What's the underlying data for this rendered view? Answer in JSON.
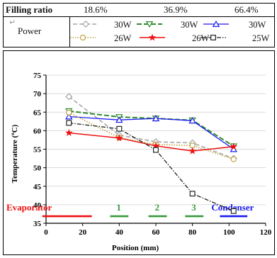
{
  "legend": {
    "header": {
      "label": "Filling ratio",
      "ratios": [
        "18.6%",
        "36.9%",
        "66.4%"
      ]
    },
    "power_label": "Power",
    "entries": [
      {
        "text": "30W",
        "style": "grey dashed, diamond"
      },
      {
        "text": "30W",
        "style": "green dashed, triangle-down"
      },
      {
        "text": "30W",
        "style": "blue solid, triangle-up"
      },
      {
        "text": "26W",
        "style": "olive dotted, circle"
      },
      {
        "text": "26W",
        "style": "red solid, star"
      },
      {
        "text": "25W",
        "style": "black dash-dot, square"
      }
    ]
  },
  "colors": {
    "grey": "#a6a6a6",
    "green": "#2e8b2e",
    "blue": "#1a1aee",
    "olive": "#c0a040",
    "red": "#ee1111",
    "black": "#222222",
    "bar_green": "#3a9a3a",
    "bar_red": "#ee1111",
    "bar_blue": "#1a1aee"
  },
  "chart_data": {
    "type": "line",
    "xlabel": "Position (mm)",
    "ylabel": "Temperature (°C)",
    "xlim": [
      0,
      120
    ],
    "ylim": [
      35,
      75
    ],
    "xticks": [
      0,
      20,
      40,
      60,
      80,
      100,
      120
    ],
    "yticks": [
      35,
      40,
      45,
      50,
      55,
      60,
      65,
      70,
      75
    ],
    "x": [
      12.5,
      40,
      60,
      80,
      102.5
    ],
    "series": [
      {
        "key": "s1",
        "values": [
          69.2,
          58.8,
          57.0,
          56.7,
          52.5
        ]
      },
      {
        "key": "s2",
        "values": [
          65.3,
          63.7,
          63.3,
          62.8,
          55.8
        ]
      },
      {
        "key": "s3",
        "values": [
          63.8,
          62.9,
          63.3,
          62.7,
          55.0
        ]
      },
      {
        "key": "s4",
        "values": [
          64.9,
          58.1,
          56.3,
          56.0,
          52.3
        ]
      },
      {
        "key": "s5",
        "values": [
          59.4,
          58.0,
          55.9,
          54.5,
          55.7
        ]
      },
      {
        "key": "s6",
        "values": [
          62.1,
          60.5,
          54.8,
          43.0,
          38.3
        ]
      }
    ],
    "regions": [
      {
        "label": "Evaporator",
        "x_from": -2,
        "x_to": 25,
        "color": "red"
      },
      {
        "label": "1",
        "x_from": 35,
        "x_to": 45,
        "color": "bar_green"
      },
      {
        "label": "2",
        "x_from": 56,
        "x_to": 66,
        "color": "bar_green"
      },
      {
        "label": "3",
        "x_from": 76,
        "x_to": 86,
        "color": "bar_green"
      },
      {
        "label": "Condenser",
        "x_from": 95,
        "x_to": 110,
        "color": "bar_blue"
      }
    ]
  }
}
